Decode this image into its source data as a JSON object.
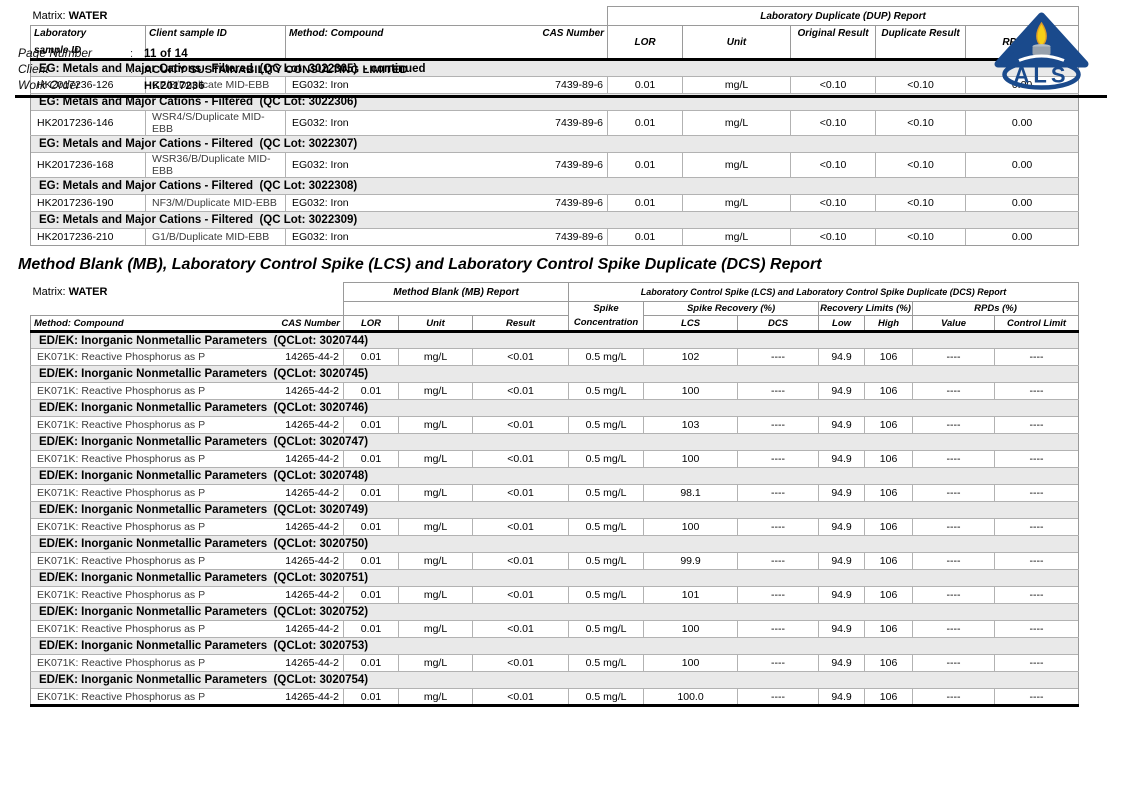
{
  "header": {
    "fields": [
      {
        "label": "Page Number",
        "sep": ":",
        "value": "11 of 14"
      },
      {
        "label": "Client",
        "sep": ":",
        "value": "ACUITY SUSTAINABILITY CONSULTING LIMITED"
      },
      {
        "label": "Work Order",
        "sep": "",
        "value": "HK2017236"
      }
    ],
    "logo": {
      "text": "ALS",
      "triangle_color": "#1a4a8c",
      "flame_color": "#f6cf17"
    }
  },
  "dup_table": {
    "matrix_label": "Matrix:",
    "matrix_value": "WATER",
    "group_header": "Laboratory Duplicate (DUP) Report",
    "col_headers": {
      "lab_id_line1": "Laboratory",
      "lab_id_line2": "sample ID",
      "client_id": "Client sample ID",
      "method": "Method: Compound",
      "cas": "CAS Number",
      "lor": "LOR",
      "unit": "Unit",
      "original": "Original Result",
      "duplicate": "Duplicate Result",
      "rpd": "RPD (%)"
    },
    "sections": [
      {
        "title": "EG: Metals and Major Cations - Filtered  (QC Lot: 3022305)  - continued",
        "rows": [
          [
            "HK2017236-126",
            "CF/B/Duplicate MID-EBB",
            "EG032: Iron",
            "7439-89-6",
            "0.01",
            "mg/L",
            "<0.10",
            "<0.10",
            "0.00"
          ]
        ]
      },
      {
        "title": "EG: Metals and Major Cations - Filtered  (QC Lot: 3022306)",
        "rows": [
          [
            "HK2017236-146",
            "WSR4/S/Duplicate MID-EBB",
            "EG032: Iron",
            "7439-89-6",
            "0.01",
            "mg/L",
            "<0.10",
            "<0.10",
            "0.00"
          ]
        ]
      },
      {
        "title": "EG: Metals and Major Cations - Filtered  (QC Lot: 3022307)",
        "rows": [
          [
            "HK2017236-168",
            "WSR36/B/Duplicate MID-EBB",
            "EG032: Iron",
            "7439-89-6",
            "0.01",
            "mg/L",
            "<0.10",
            "<0.10",
            "0.00"
          ]
        ]
      },
      {
        "title": "EG: Metals and Major Cations - Filtered  (QC Lot: 3022308)",
        "rows": [
          [
            "HK2017236-190",
            "NF3/M/Duplicate MID-EBB",
            "EG032: Iron",
            "7439-89-6",
            "0.01",
            "mg/L",
            "<0.10",
            "<0.10",
            "0.00"
          ]
        ]
      },
      {
        "title": "EG: Metals and Major Cations - Filtered  (QC Lot: 3022309)",
        "rows": [
          [
            "HK2017236-210",
            "G1/B/Duplicate MID-EBB",
            "EG032: Iron",
            "7439-89-6",
            "0.01",
            "mg/L",
            "<0.10",
            "<0.10",
            "0.00"
          ]
        ]
      }
    ]
  },
  "mb_title": "Method Blank (MB), Laboratory Control Spike (LCS) and Laboratory Control Spike Duplicate (DCS) Report",
  "mb_table": {
    "matrix_label": "Matrix:",
    "matrix_value": "WATER",
    "group_mb": "Method Blank (MB) Report",
    "group_lcs": "Laboratory Control Spike (LCS) and Laboratory Control Spike Duplicate (DCS) Report",
    "sub_spike": "Spike",
    "sub_recovery": "Spike Recovery (%)",
    "sub_limits": "Recovery Limits (%)",
    "sub_rpds": "RPDs (%)",
    "col_headers": {
      "method": "Method: Compound",
      "cas": "CAS Number",
      "lor": "LOR",
      "unit": "Unit",
      "result": "Result",
      "spike_conc": "Concentration",
      "lcs": "LCS",
      "dcs": "DCS",
      "low": "Low",
      "high": "High",
      "value": "Value",
      "control_limit": "Control Limit"
    },
    "sections": [
      {
        "title": "ED/EK: Inorganic Nonmetallic Parameters  (QCLot: 3020744)",
        "rows": [
          [
            "EK071K: Reactive Phosphorus as P",
            "14265-44-2",
            "0.01",
            "mg/L",
            "<0.01",
            "0.5 mg/L",
            "102",
            "----",
            "94.9",
            "106",
            "----",
            "----"
          ]
        ]
      },
      {
        "title": "ED/EK: Inorganic Nonmetallic Parameters  (QCLot: 3020745)",
        "rows": [
          [
            "EK071K: Reactive Phosphorus as P",
            "14265-44-2",
            "0.01",
            "mg/L",
            "<0.01",
            "0.5 mg/L",
            "100",
            "----",
            "94.9",
            "106",
            "----",
            "----"
          ]
        ]
      },
      {
        "title": "ED/EK: Inorganic Nonmetallic Parameters  (QCLot: 3020746)",
        "rows": [
          [
            "EK071K: Reactive Phosphorus as P",
            "14265-44-2",
            "0.01",
            "mg/L",
            "<0.01",
            "0.5 mg/L",
            "103",
            "----",
            "94.9",
            "106",
            "----",
            "----"
          ]
        ]
      },
      {
        "title": "ED/EK: Inorganic Nonmetallic Parameters  (QCLot: 3020747)",
        "rows": [
          [
            "EK071K: Reactive Phosphorus as P",
            "14265-44-2",
            "0.01",
            "mg/L",
            "<0.01",
            "0.5 mg/L",
            "100",
            "----",
            "94.9",
            "106",
            "----",
            "----"
          ]
        ]
      },
      {
        "title": "ED/EK: Inorganic Nonmetallic Parameters  (QCLot: 3020748)",
        "rows": [
          [
            "EK071K: Reactive Phosphorus as P",
            "14265-44-2",
            "0.01",
            "mg/L",
            "<0.01",
            "0.5 mg/L",
            "98.1",
            "----",
            "94.9",
            "106",
            "----",
            "----"
          ]
        ]
      },
      {
        "title": "ED/EK: Inorganic Nonmetallic Parameters  (QCLot: 3020749)",
        "rows": [
          [
            "EK071K: Reactive Phosphorus as P",
            "14265-44-2",
            "0.01",
            "mg/L",
            "<0.01",
            "0.5 mg/L",
            "100",
            "----",
            "94.9",
            "106",
            "----",
            "----"
          ]
        ]
      },
      {
        "title": "ED/EK: Inorganic Nonmetallic Parameters  (QCLot: 3020750)",
        "rows": [
          [
            "EK071K: Reactive Phosphorus as P",
            "14265-44-2",
            "0.01",
            "mg/L",
            "<0.01",
            "0.5 mg/L",
            "99.9",
            "----",
            "94.9",
            "106",
            "----",
            "----"
          ]
        ]
      },
      {
        "title": "ED/EK: Inorganic Nonmetallic Parameters  (QCLot: 3020751)",
        "rows": [
          [
            "EK071K: Reactive Phosphorus as P",
            "14265-44-2",
            "0.01",
            "mg/L",
            "<0.01",
            "0.5 mg/L",
            "101",
            "----",
            "94.9",
            "106",
            "----",
            "----"
          ]
        ]
      },
      {
        "title": "ED/EK: Inorganic Nonmetallic Parameters  (QCLot: 3020752)",
        "rows": [
          [
            "EK071K: Reactive Phosphorus as P",
            "14265-44-2",
            "0.01",
            "mg/L",
            "<0.01",
            "0.5 mg/L",
            "100",
            "----",
            "94.9",
            "106",
            "----",
            "----"
          ]
        ]
      },
      {
        "title": "ED/EK: Inorganic Nonmetallic Parameters  (QCLot: 3020753)",
        "rows": [
          [
            "EK071K: Reactive Phosphorus as P",
            "14265-44-2",
            "0.01",
            "mg/L",
            "<0.01",
            "0.5 mg/L",
            "100",
            "----",
            "94.9",
            "106",
            "----",
            "----"
          ]
        ]
      },
      {
        "title": "ED/EK: Inorganic Nonmetallic Parameters  (QCLot: 3020754)",
        "rows": [
          [
            "EK071K: Reactive Phosphorus as P",
            "14265-44-2",
            "0.01",
            "mg/L",
            "<0.01",
            "0.5 mg/L",
            "100.0",
            "----",
            "94.9",
            "106",
            "----",
            "----"
          ]
        ]
      }
    ]
  }
}
